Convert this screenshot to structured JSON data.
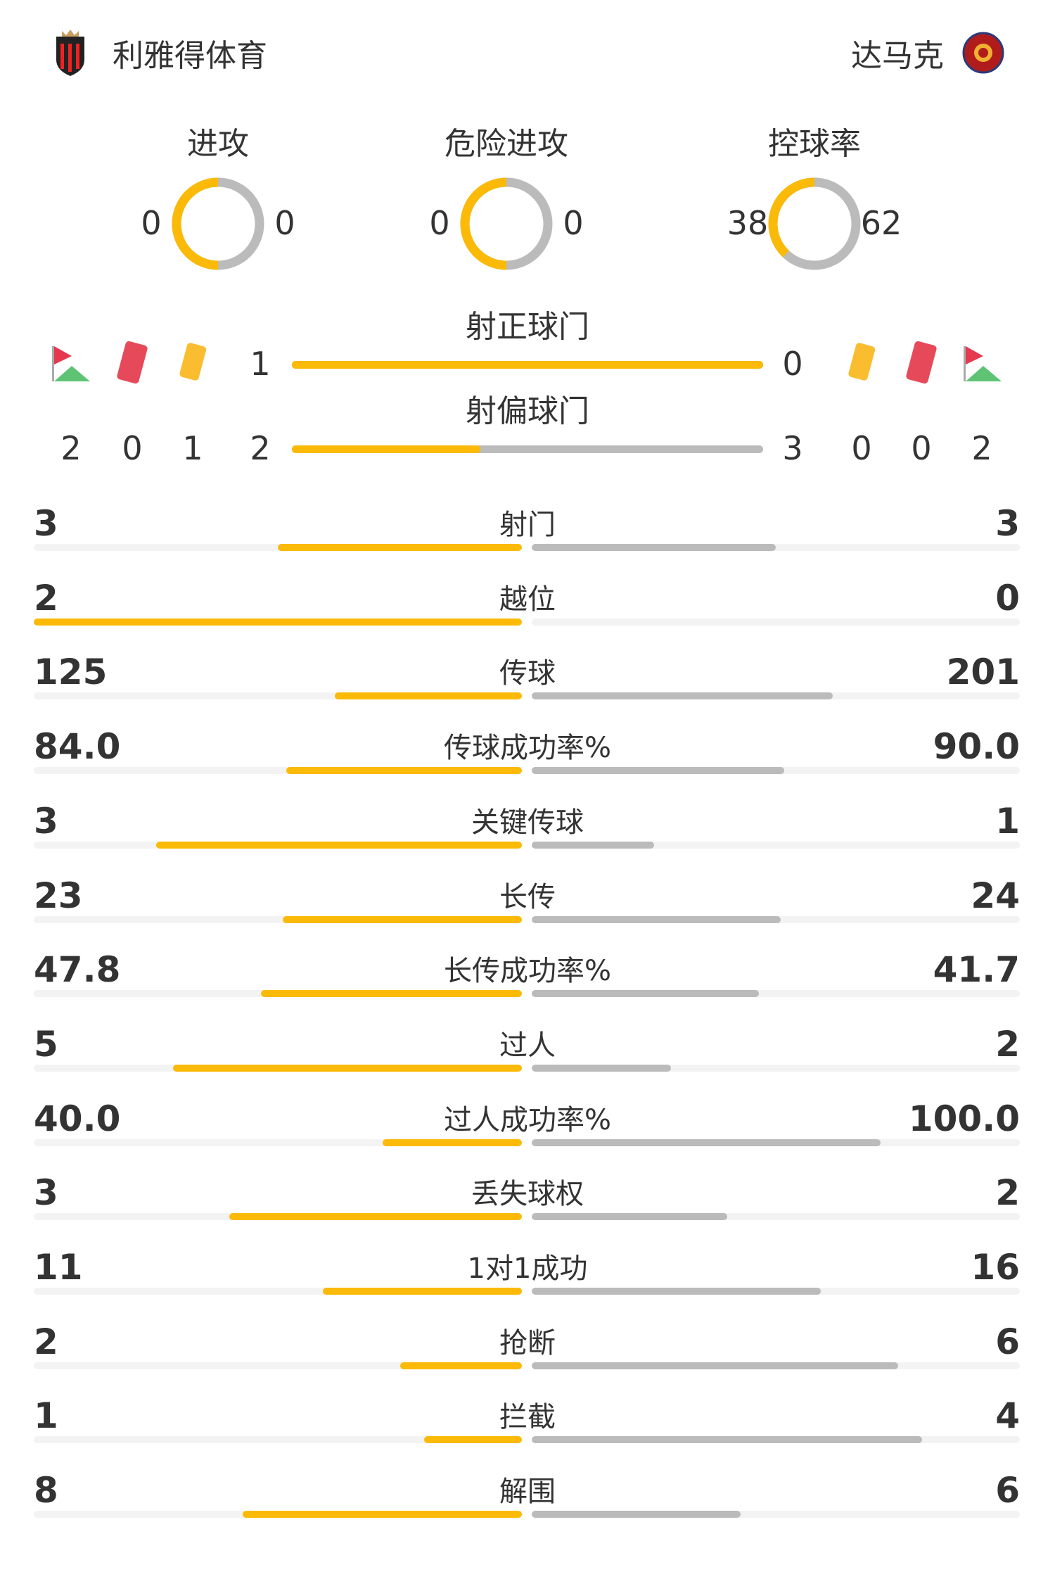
{
  "colors": {
    "home": "#FBBA07",
    "away": "#BBBBBB",
    "track": "#F3F3F3"
  },
  "home": {
    "name": "利雅得体育",
    "logo": "alriyadh-crest"
  },
  "away": {
    "name": "达马克",
    "logo": "damac-club-crest"
  },
  "rings": [
    {
      "label": "进攻",
      "home": 0,
      "away": 0
    },
    {
      "label": "危险进攻",
      "home": 0,
      "away": 0
    },
    {
      "label": "控球率",
      "home": 38,
      "away": 62
    }
  ],
  "on_target": {
    "label": "射正球门",
    "home": 1,
    "away": 0
  },
  "off_target": {
    "label": "射偏球门",
    "home": 2,
    "away": 3
  },
  "icons": {
    "corner": "corner-flag-icon",
    "red": "red-card-icon",
    "yellow": "yellow-card-icon"
  },
  "home_counts": {
    "corner": 2,
    "red": 0,
    "yellow": 1
  },
  "away_counts": {
    "corner": 2,
    "red": 0,
    "yellow": 0
  },
  "stats": [
    {
      "label": "射门",
      "home": "3",
      "away": "3"
    },
    {
      "label": "越位",
      "home": "2",
      "away": "0"
    },
    {
      "label": "传球",
      "home": "125",
      "away": "201"
    },
    {
      "label": "传球成功率%",
      "home": "84.0",
      "away": "90.0"
    },
    {
      "label": "关键传球",
      "home": "3",
      "away": "1"
    },
    {
      "label": "长传",
      "home": "23",
      "away": "24"
    },
    {
      "label": "长传成功率%",
      "home": "47.8",
      "away": "41.7"
    },
    {
      "label": "过人",
      "home": "5",
      "away": "2"
    },
    {
      "label": "过人成功率%",
      "home": "40.0",
      "away": "100.0"
    },
    {
      "label": "丢失球权",
      "home": "3",
      "away": "2"
    },
    {
      "label": "1对1成功",
      "home": "11",
      "away": "16"
    },
    {
      "label": "抢断",
      "home": "2",
      "away": "6"
    },
    {
      "label": "拦截",
      "home": "1",
      "away": "4"
    },
    {
      "label": "解围",
      "home": "8",
      "away": "6"
    }
  ]
}
